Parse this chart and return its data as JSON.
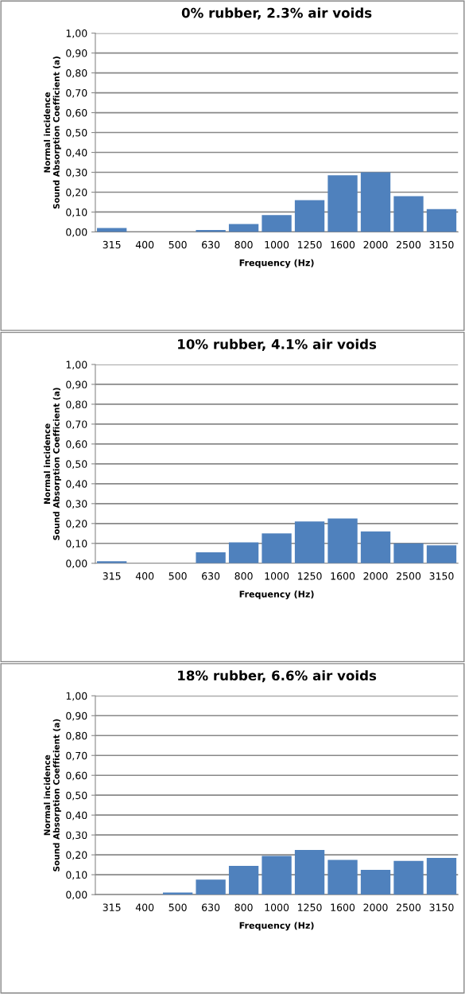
{
  "chart_data": [
    {
      "type": "bar",
      "title": "0% rubber, 2.3% air voids",
      "xlabel": "Frequency (Hz)",
      "ylabel": "Normal incidence\nSound Absorption Coefficient (a)",
      "categories": [
        "315",
        "400",
        "500",
        "630",
        "800",
        "1000",
        "1250",
        "1600",
        "2000",
        "2500",
        "3150"
      ],
      "values": [
        0.02,
        0,
        0,
        0.01,
        0.04,
        0.085,
        0.16,
        0.285,
        0.3,
        0.18,
        0.115
      ],
      "color": "#4f81bd",
      "ylim": [
        0,
        1
      ],
      "yticks": [
        {
          "value": 0,
          "label": "0,00"
        },
        {
          "value": 0.1,
          "label": "0,10"
        },
        {
          "value": 0.2,
          "label": "0,20"
        },
        {
          "value": 0.3,
          "label": "0,30"
        },
        {
          "value": 0.4,
          "label": "0,40"
        },
        {
          "value": 0.5,
          "label": "0,50"
        },
        {
          "value": 0.6,
          "label": "0,60"
        },
        {
          "value": 0.7,
          "label": "0,70"
        },
        {
          "value": 0.8,
          "label": "0,80"
        },
        {
          "value": 0.9,
          "label": "0,90"
        },
        {
          "value": 1,
          "label": "1,00"
        }
      ],
      "grid": "y",
      "legend": false
    },
    {
      "type": "bar",
      "title": "10% rubber, 4.1% air voids",
      "xlabel": "Frequency (Hz)",
      "ylabel": "Normal incidence\nSound Absorption Coefficient (a)",
      "categories": [
        "315",
        "400",
        "500",
        "630",
        "800",
        "1000",
        "1250",
        "1600",
        "2000",
        "2500",
        "3150"
      ],
      "values": [
        0.01,
        0,
        0,
        0.055,
        0.105,
        0.15,
        0.21,
        0.225,
        0.16,
        0.1,
        0.09
      ],
      "color": "#4f81bd",
      "ylim": [
        0,
        1
      ],
      "yticks": [
        {
          "value": 0,
          "label": "0,00"
        },
        {
          "value": 0.1,
          "label": "0,10"
        },
        {
          "value": 0.2,
          "label": "0,20"
        },
        {
          "value": 0.3,
          "label": "0,30"
        },
        {
          "value": 0.4,
          "label": "0,40"
        },
        {
          "value": 0.5,
          "label": "0,50"
        },
        {
          "value": 0.6,
          "label": "0,60"
        },
        {
          "value": 0.7,
          "label": "0,70"
        },
        {
          "value": 0.8,
          "label": "0,80"
        },
        {
          "value": 0.9,
          "label": "0,90"
        },
        {
          "value": 1,
          "label": "1,00"
        }
      ],
      "grid": "y",
      "legend": false
    },
    {
      "type": "bar",
      "title": "18% rubber, 6.6% air voids",
      "xlabel": "Frequency (Hz)",
      "ylabel": "Normal incidence\nSound Absorption Coefficient (a)",
      "categories": [
        "315",
        "400",
        "500",
        "630",
        "800",
        "1000",
        "1250",
        "1600",
        "2000",
        "2500",
        "3150"
      ],
      "values": [
        0,
        0,
        0.01,
        0.075,
        0.145,
        0.195,
        0.225,
        0.175,
        0.125,
        0.17,
        0.185
      ],
      "color": "#4f81bd",
      "ylim": [
        0,
        1
      ],
      "yticks": [
        {
          "value": 0,
          "label": "0,00"
        },
        {
          "value": 0.1,
          "label": "0,10"
        },
        {
          "value": 0.2,
          "label": "0,20"
        },
        {
          "value": 0.3,
          "label": "0,30"
        },
        {
          "value": 0.4,
          "label": "0,40"
        },
        {
          "value": 0.5,
          "label": "0,50"
        },
        {
          "value": 0.6,
          "label": "0,60"
        },
        {
          "value": 0.7,
          "label": "0,70"
        },
        {
          "value": 0.8,
          "label": "0,80"
        },
        {
          "value": 0.9,
          "label": "0,90"
        },
        {
          "value": 1,
          "label": "1,00"
        }
      ],
      "grid": "y",
      "legend": false
    }
  ]
}
